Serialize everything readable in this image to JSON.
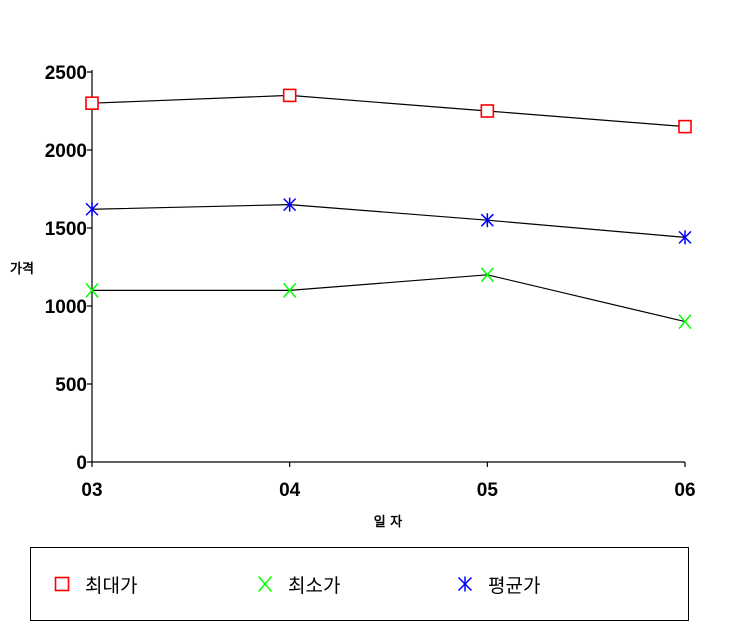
{
  "chart_data": {
    "type": "line",
    "xlabel": "일 자",
    "ylabel": "가격",
    "categories": [
      "03",
      "04",
      "05",
      "06"
    ],
    "ylim": [
      0,
      2500
    ],
    "yticks": [
      0,
      500,
      1000,
      1500,
      2000,
      2500
    ],
    "series": [
      {
        "name": "최대가",
        "values": [
          2300,
          2350,
          2250,
          2150
        ],
        "color": "#ff0000",
        "marker": "square"
      },
      {
        "name": "최소가",
        "values": [
          1100,
          1100,
          1200,
          900
        ],
        "color": "#00ff00",
        "marker": "x"
      },
      {
        "name": "평균가",
        "values": [
          1620,
          1650,
          1550,
          1440
        ],
        "color": "#0000ff",
        "marker": "asterisk"
      }
    ],
    "legend_position": "bottom",
    "grid": false
  }
}
